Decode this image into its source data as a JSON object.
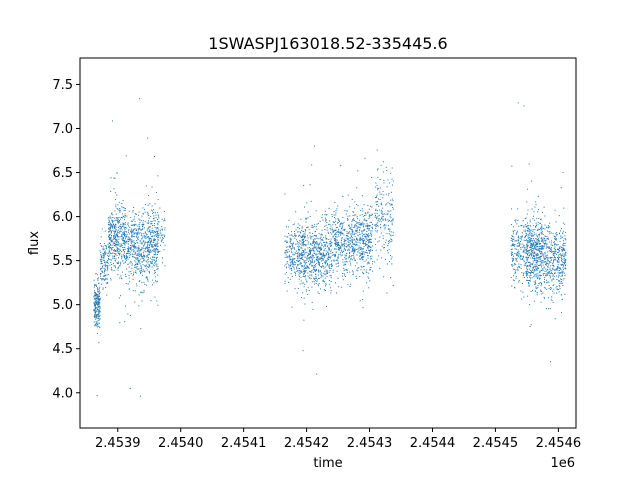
{
  "chart_data": {
    "type": "scatter",
    "title": "1SWASPJ163018.52-335445.6",
    "xlabel": "time",
    "ylabel": "flux",
    "x_offset_label": "1e6",
    "xlim": [
      2453840,
      2454628
    ],
    "ylim": [
      3.6,
      7.8
    ],
    "x_ticks": [
      2453900,
      2454000,
      2454100,
      2454200,
      2454300,
      2454400,
      2454500,
      2454600
    ],
    "x_tick_labels": [
      "2.4539",
      "2.4540",
      "2.4541",
      "2.4542",
      "2.4543",
      "2.4544",
      "2.4545",
      "2.4546"
    ],
    "y_ticks": [
      4.0,
      4.5,
      5.0,
      5.5,
      6.0,
      6.5,
      7.0,
      7.5
    ],
    "y_tick_labels": [
      "4.0",
      "4.5",
      "5.0",
      "5.5",
      "6.0",
      "6.5",
      "7.0",
      "7.5"
    ],
    "grid": false,
    "marker_color": "#1f77b4",
    "series": [
      {
        "clusters": [
          {
            "x_range": [
              2453862,
              2453872
            ],
            "y_center": 5.0,
            "y_spread": 0.25,
            "n": 220
          },
          {
            "x_range": [
              2453872,
              2453885
            ],
            "y_center": 5.45,
            "y_spread": 0.3,
            "n": 120
          },
          {
            "x_range": [
              2453885,
              2453912
            ],
            "y_center": 5.75,
            "y_spread": 0.35,
            "n": 420
          },
          {
            "x_range": [
              2453912,
              2453948
            ],
            "y_center": 5.65,
            "y_spread": 0.38,
            "n": 460
          },
          {
            "x_range": [
              2453948,
              2453965
            ],
            "y_center": 5.7,
            "y_spread": 0.4,
            "n": 260
          },
          {
            "x_range": [
              2453965,
              2453975
            ],
            "y_center": 5.8,
            "y_spread": 0.3,
            "n": 40
          },
          {
            "x_range": [
              2454165,
              2454185
            ],
            "y_center": 5.55,
            "y_spread": 0.3,
            "n": 150
          },
          {
            "x_range": [
              2454185,
              2454240
            ],
            "y_center": 5.55,
            "y_spread": 0.35,
            "n": 700
          },
          {
            "x_range": [
              2454240,
              2454270
            ],
            "y_center": 5.7,
            "y_spread": 0.35,
            "n": 300
          },
          {
            "x_range": [
              2454270,
              2454305
            ],
            "y_center": 5.7,
            "y_spread": 0.35,
            "n": 420
          },
          {
            "x_range": [
              2454308,
              2454338
            ],
            "y_center": 6.0,
            "y_spread": 0.45,
            "n": 200
          },
          {
            "x_range": [
              2454525,
              2454548
            ],
            "y_center": 5.6,
            "y_spread": 0.35,
            "n": 200
          },
          {
            "x_range": [
              2454548,
              2454575
            ],
            "y_center": 5.6,
            "y_spread": 0.38,
            "n": 500
          },
          {
            "x_range": [
              2454575,
              2454612
            ],
            "y_center": 5.5,
            "y_spread": 0.38,
            "n": 450
          }
        ]
      }
    ]
  }
}
